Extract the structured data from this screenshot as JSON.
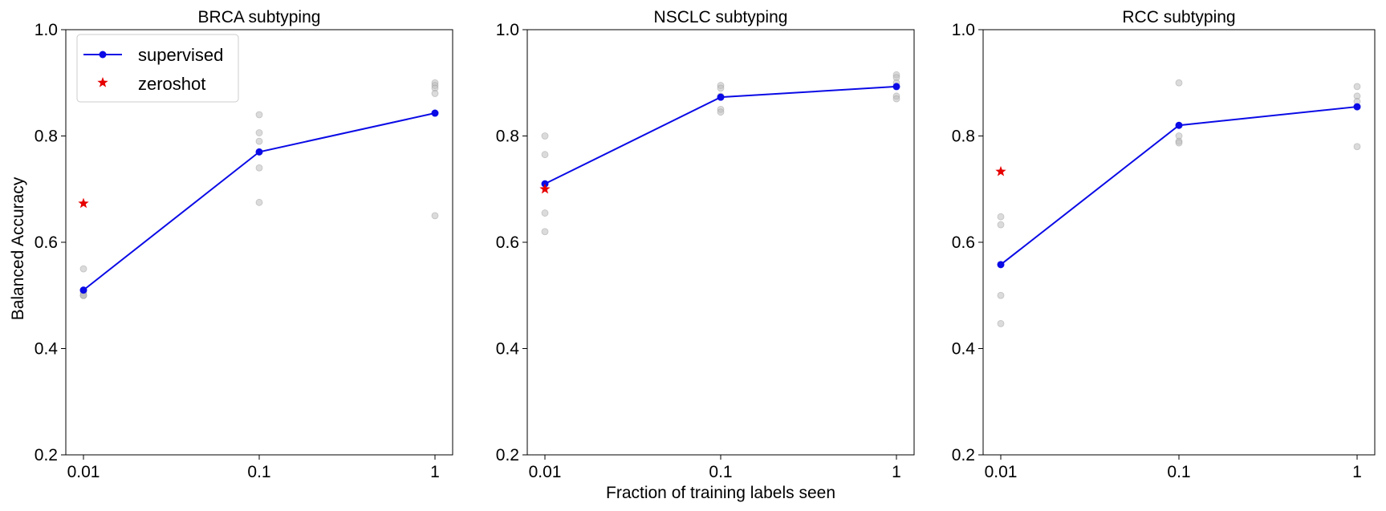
{
  "figure": {
    "xlabel": "Fraction of training labels seen",
    "ylabel": "Balanced Accuracy",
    "legend": {
      "supervised_label": "supervised",
      "zeroshot_label": "zeroshot",
      "placement": "top-left"
    }
  },
  "colors": {
    "supervised": "#0a0ae6",
    "zeroshot": "#e60000",
    "trials": "#bdbdbd"
  },
  "chart_data": [
    {
      "type": "line",
      "title": "BRCA subtyping",
      "x": [
        0.01,
        0.1,
        1
      ],
      "xscale": "log",
      "xticklabels": [
        "0.01",
        "0.1",
        "1"
      ],
      "ylim": [
        0.2,
        1.0
      ],
      "yticks": [
        0.2,
        0.4,
        0.6,
        0.8,
        1.0
      ],
      "yticklabels": [
        "0.2",
        "0.4",
        "0.6",
        "0.8",
        "1.0"
      ],
      "grid": false,
      "legend": true,
      "series": [
        {
          "name": "supervised",
          "kind": "line+marker",
          "values": [
            0.51,
            0.77,
            0.843
          ]
        },
        {
          "name": "zeroshot",
          "kind": "star",
          "x": [
            0.01
          ],
          "values": [
            0.673
          ]
        },
        {
          "kind": "trial-points",
          "x": [
            0.01,
            0.01,
            0.01,
            0.01,
            0.01,
            0.1,
            0.1,
            0.1,
            0.1,
            0.1,
            1,
            1,
            1,
            1,
            1
          ],
          "values": [
            0.55,
            0.505,
            0.5,
            0.5,
            0.5,
            0.84,
            0.806,
            0.79,
            0.74,
            0.675,
            0.9,
            0.895,
            0.89,
            0.88,
            0.65
          ]
        }
      ]
    },
    {
      "type": "line",
      "title": "NSCLC subtyping",
      "x": [
        0.01,
        0.1,
        1
      ],
      "xscale": "log",
      "xticklabels": [
        "0.01",
        "0.1",
        "1"
      ],
      "ylim": [
        0.2,
        1.0
      ],
      "yticks": [
        0.2,
        0.4,
        0.6,
        0.8,
        1.0
      ],
      "yticklabels": [
        "0.2",
        "0.4",
        "0.6",
        "0.8",
        "1.0"
      ],
      "grid": false,
      "legend": false,
      "series": [
        {
          "name": "supervised",
          "kind": "line+marker",
          "values": [
            0.71,
            0.873,
            0.893
          ]
        },
        {
          "name": "zeroshot",
          "kind": "star",
          "x": [
            0.01
          ],
          "values": [
            0.7
          ]
        },
        {
          "kind": "trial-points",
          "x": [
            0.01,
            0.01,
            0.01,
            0.01,
            0.1,
            0.1,
            0.1,
            0.1,
            0.1,
            1,
            1,
            1,
            1,
            1
          ],
          "values": [
            0.8,
            0.765,
            0.655,
            0.62,
            0.895,
            0.89,
            0.875,
            0.85,
            0.845,
            0.915,
            0.91,
            0.9,
            0.875,
            0.87
          ]
        }
      ]
    },
    {
      "type": "line",
      "title": "RCC subtyping",
      "x": [
        0.01,
        0.1,
        1
      ],
      "xscale": "log",
      "xticklabels": [
        "0.01",
        "0.1",
        "1"
      ],
      "ylim": [
        0.2,
        1.0
      ],
      "yticks": [
        0.2,
        0.4,
        0.6,
        0.8,
        1.0
      ],
      "yticklabels": [
        "0.2",
        "0.4",
        "0.6",
        "0.8",
        "1.0"
      ],
      "grid": false,
      "legend": false,
      "series": [
        {
          "name": "supervised",
          "kind": "line+marker",
          "values": [
            0.558,
            0.82,
            0.855
          ]
        },
        {
          "name": "zeroshot",
          "kind": "star",
          "x": [
            0.01
          ],
          "values": [
            0.733
          ]
        },
        {
          "kind": "trial-points",
          "x": [
            0.01,
            0.01,
            0.01,
            0.01,
            0.1,
            0.1,
            0.1,
            0.1,
            1,
            1,
            1,
            1
          ],
          "values": [
            0.648,
            0.633,
            0.5,
            0.447,
            0.9,
            0.8,
            0.79,
            0.787,
            0.893,
            0.875,
            0.865,
            0.78
          ]
        }
      ]
    }
  ]
}
